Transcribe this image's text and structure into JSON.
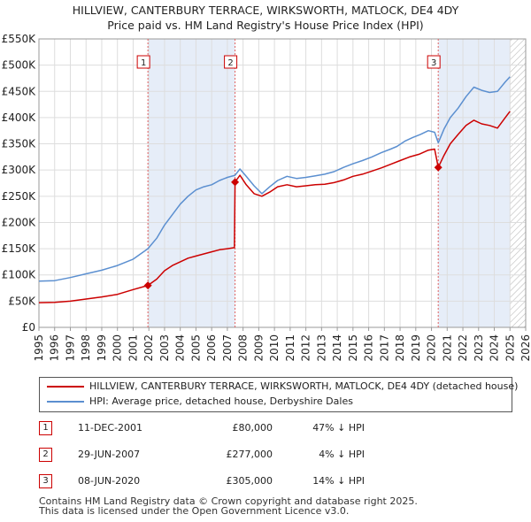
{
  "title_line1": "HILLVIEW, CANTERBURY TERRACE, WIRKSWORTH, MATLOCK, DE4 4DY",
  "title_line2": "Price paid vs. HM Land Registry's House Price Index (HPI)",
  "chart_data": {
    "type": "line",
    "title": "HILLVIEW, CANTERBURY TERRACE, WIRKSWORTH, MATLOCK, DE4 4DY — Price paid vs. HM Land Registry's House Price Index (HPI)",
    "xlim": [
      1995,
      2026
    ],
    "ylim": [
      0,
      550000
    ],
    "y_ticks": [
      0,
      50000,
      100000,
      150000,
      200000,
      250000,
      300000,
      350000,
      400000,
      450000,
      500000,
      550000
    ],
    "y_tick_labels": [
      "£0",
      "£50K",
      "£100K",
      "£150K",
      "£200K",
      "£250K",
      "£300K",
      "£350K",
      "£400K",
      "£450K",
      "£500K",
      "£550K"
    ],
    "x_ticks": [
      "1995",
      "1996",
      "1997",
      "1998",
      "1999",
      "2000",
      "2001",
      "2002",
      "2003",
      "2004",
      "2005",
      "2006",
      "2007",
      "2008",
      "2009",
      "2010",
      "2011",
      "2012",
      "2013",
      "2014",
      "2015",
      "2016",
      "2017",
      "2018",
      "2019",
      "2020",
      "2021",
      "2022",
      "2023",
      "2024",
      "2025",
      "2026"
    ],
    "grid": true,
    "shaded_ranges": [
      [
        2001.94,
        2007.49
      ],
      [
        2020.43,
        2025.0
      ]
    ],
    "hatched_from": 2025.0,
    "series": [
      {
        "name": "HILLVIEW, CANTERBURY TERRACE, WIRKSWORTH, MATLOCK, DE4 4DY (detached house)",
        "color": "#cc0000",
        "points": [
          [
            1995.0,
            47000
          ],
          [
            1996.0,
            47500
          ],
          [
            1997.0,
            50000
          ],
          [
            1998.0,
            54000
          ],
          [
            1999.0,
            58000
          ],
          [
            2000.0,
            63000
          ],
          [
            2001.0,
            72000
          ],
          [
            2001.94,
            80000
          ],
          [
            2002.5,
            92000
          ],
          [
            2003.0,
            108000
          ],
          [
            2003.5,
            118000
          ],
          [
            2004.0,
            125000
          ],
          [
            2004.5,
            132000
          ],
          [
            2005.0,
            136000
          ],
          [
            2005.5,
            140000
          ],
          [
            2006.0,
            144000
          ],
          [
            2006.5,
            148000
          ],
          [
            2007.0,
            150000
          ],
          [
            2007.45,
            152000
          ],
          [
            2007.49,
            277000
          ],
          [
            2007.8,
            290000
          ],
          [
            2008.2,
            272000
          ],
          [
            2008.7,
            255000
          ],
          [
            2009.2,
            250000
          ],
          [
            2009.7,
            258000
          ],
          [
            2010.2,
            268000
          ],
          [
            2010.8,
            272000
          ],
          [
            2011.4,
            268000
          ],
          [
            2012.0,
            270000
          ],
          [
            2012.6,
            272000
          ],
          [
            2013.2,
            273000
          ],
          [
            2013.8,
            276000
          ],
          [
            2014.4,
            281000
          ],
          [
            2015.0,
            288000
          ],
          [
            2015.6,
            292000
          ],
          [
            2016.2,
            298000
          ],
          [
            2016.8,
            304000
          ],
          [
            2017.4,
            311000
          ],
          [
            2018.0,
            318000
          ],
          [
            2018.6,
            325000
          ],
          [
            2019.2,
            330000
          ],
          [
            2019.8,
            338000
          ],
          [
            2020.2,
            340000
          ],
          [
            2020.43,
            305000
          ],
          [
            2020.8,
            328000
          ],
          [
            2021.2,
            350000
          ],
          [
            2021.7,
            368000
          ],
          [
            2022.2,
            385000
          ],
          [
            2022.7,
            395000
          ],
          [
            2023.2,
            388000
          ],
          [
            2023.7,
            385000
          ],
          [
            2024.2,
            380000
          ],
          [
            2024.7,
            400000
          ],
          [
            2025.0,
            412000
          ]
        ]
      },
      {
        "name": "HPI: Average price, detached house, Derbyshire Dales",
        "color": "#5b8fd0",
        "points": [
          [
            1995.0,
            88000
          ],
          [
            1996.0,
            89000
          ],
          [
            1997.0,
            95000
          ],
          [
            1998.0,
            102000
          ],
          [
            1999.0,
            109000
          ],
          [
            2000.0,
            118000
          ],
          [
            2001.0,
            130000
          ],
          [
            2001.94,
            150000
          ],
          [
            2002.5,
            170000
          ],
          [
            2003.0,
            195000
          ],
          [
            2003.5,
            215000
          ],
          [
            2004.0,
            235000
          ],
          [
            2004.5,
            250000
          ],
          [
            2005.0,
            262000
          ],
          [
            2005.5,
            268000
          ],
          [
            2006.0,
            272000
          ],
          [
            2006.5,
            280000
          ],
          [
            2007.0,
            286000
          ],
          [
            2007.49,
            290000
          ],
          [
            2007.8,
            302000
          ],
          [
            2008.2,
            288000
          ],
          [
            2008.7,
            270000
          ],
          [
            2009.2,
            255000
          ],
          [
            2009.7,
            268000
          ],
          [
            2010.2,
            280000
          ],
          [
            2010.8,
            288000
          ],
          [
            2011.4,
            284000
          ],
          [
            2012.0,
            286000
          ],
          [
            2012.6,
            289000
          ],
          [
            2013.2,
            292000
          ],
          [
            2013.8,
            297000
          ],
          [
            2014.4,
            305000
          ],
          [
            2015.0,
            312000
          ],
          [
            2015.6,
            318000
          ],
          [
            2016.2,
            325000
          ],
          [
            2016.8,
            333000
          ],
          [
            2017.4,
            340000
          ],
          [
            2017.8,
            345000
          ],
          [
            2018.3,
            355000
          ],
          [
            2018.8,
            362000
          ],
          [
            2019.3,
            368000
          ],
          [
            2019.8,
            375000
          ],
          [
            2020.2,
            372000
          ],
          [
            2020.43,
            352000
          ],
          [
            2020.8,
            378000
          ],
          [
            2021.2,
            400000
          ],
          [
            2021.7,
            418000
          ],
          [
            2022.2,
            440000
          ],
          [
            2022.7,
            458000
          ],
          [
            2023.2,
            452000
          ],
          [
            2023.7,
            448000
          ],
          [
            2024.2,
            450000
          ],
          [
            2024.7,
            468000
          ],
          [
            2025.0,
            478000
          ]
        ]
      }
    ],
    "markers": [
      {
        "label": "1",
        "x": 2001.94,
        "y": 80000
      },
      {
        "label": "2",
        "x": 2007.49,
        "y": 277000
      },
      {
        "label": "3",
        "x": 2020.43,
        "y": 305000
      }
    ]
  },
  "legend": {
    "property_label": "HILLVIEW, CANTERBURY TERRACE, WIRKSWORTH, MATLOCK, DE4 4DY (detached house)",
    "hpi_label": "HPI: Average price, detached house, Derbyshire Dales",
    "property_color": "#cc0000",
    "hpi_color": "#5b8fd0"
  },
  "sales": [
    {
      "num": "1",
      "date": "11-DEC-2001",
      "price": "£80,000",
      "hpi": "47% ↓ HPI"
    },
    {
      "num": "2",
      "date": "29-JUN-2007",
      "price": "£277,000",
      "hpi": "4% ↓ HPI"
    },
    {
      "num": "3",
      "date": "08-JUN-2020",
      "price": "£305,000",
      "hpi": "14% ↓ HPI"
    }
  ],
  "footer_line1": "Contains HM Land Registry data © Crown copyright and database right 2025.",
  "footer_line2": "This data is licensed under the Open Government Licence v3.0."
}
